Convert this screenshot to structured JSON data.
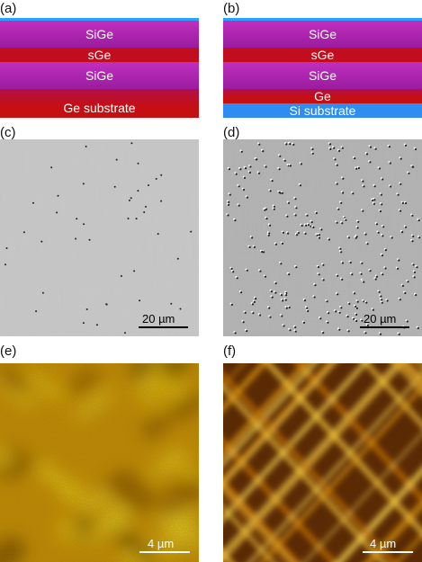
{
  "panels": {
    "a": {
      "label": "(a)",
      "layers": [
        "SiGe",
        "sGe",
        "SiGe",
        "Ge substrate"
      ]
    },
    "b": {
      "label": "(b)",
      "layers": [
        "SiGe",
        "sGe",
        "SiGe",
        "Ge",
        "Si substrate"
      ]
    },
    "c": {
      "label": "(c)",
      "scale": "20 µm"
    },
    "d": {
      "label": "(d)",
      "scale": "20 µm"
    },
    "e": {
      "label": "(e)",
      "scale": "4 µm"
    },
    "f": {
      "label": "(f)",
      "scale": "4 µm"
    }
  },
  "colors": {
    "sige": "#b024b0",
    "sge": "#c10d1d",
    "ge": "#c41010",
    "si_substrate": "#2f8cf0",
    "cap": "#27a2ff"
  }
}
